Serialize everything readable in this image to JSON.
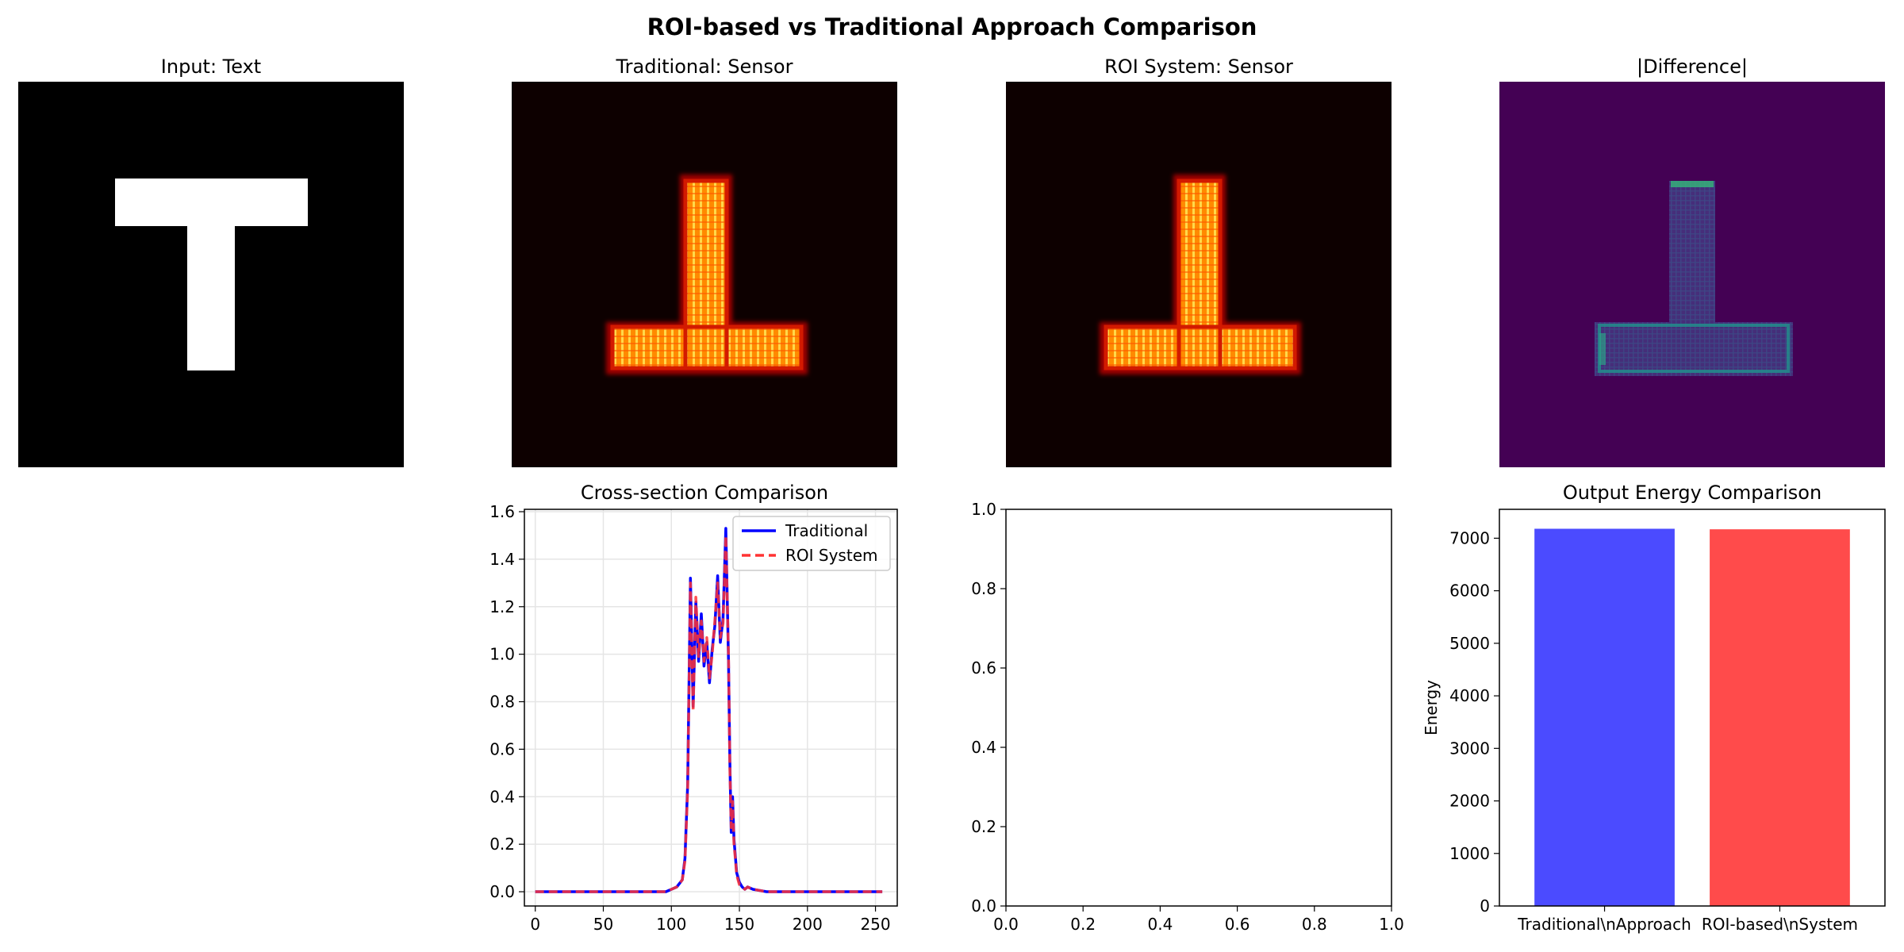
{
  "figure": {
    "title": "ROI-based vs Traditional Approach Comparison"
  },
  "panels": {
    "input": {
      "title": "Input: Text"
    },
    "traditional_sensor": {
      "title": "Traditional: Sensor"
    },
    "roi_sensor": {
      "title": "ROI System: Sensor"
    },
    "difference": {
      "title": "|Difference|"
    }
  },
  "colors": {
    "traditional": "#0000ff",
    "roi": "#ff3333",
    "traditional_bar": "#4b4bff",
    "roi_bar": "#ff4b4b",
    "heat_background": "#0d0000",
    "diff_background": "#440154",
    "grid": "#e5e5e5"
  },
  "chart_data": [
    {
      "type": "line",
      "title": "Cross-section Comparison",
      "xlabel": "",
      "ylabel": "",
      "xlim": [
        -8,
        266
      ],
      "ylim": [
        -0.06,
        1.61
      ],
      "xticks": [
        0,
        50,
        100,
        150,
        200,
        250
      ],
      "yticks": [
        0.0,
        0.2,
        0.4,
        0.6,
        0.8,
        1.0,
        1.2,
        1.4,
        1.6
      ],
      "grid": true,
      "legend_position": "top-right",
      "x": [
        0,
        20,
        40,
        60,
        80,
        96,
        100,
        104,
        108,
        110,
        112,
        114,
        116,
        118,
        120,
        122,
        124,
        126,
        128,
        130,
        132,
        134,
        136,
        138,
        140,
        142,
        143,
        144,
        145,
        146,
        147,
        148,
        150,
        152,
        154,
        156,
        160,
        170,
        180,
        200,
        220,
        240,
        255
      ],
      "series": [
        {
          "name": "Traditional",
          "style": "solid",
          "values": [
            0.0,
            0.0,
            0.0,
            0.0,
            0.0,
            0.0,
            0.01,
            0.02,
            0.05,
            0.14,
            0.45,
            1.32,
            0.78,
            1.22,
            0.97,
            1.17,
            0.95,
            1.05,
            0.88,
            1.02,
            1.12,
            1.33,
            1.05,
            1.15,
            1.53,
            0.97,
            0.55,
            0.25,
            0.4,
            0.22,
            0.15,
            0.08,
            0.04,
            0.02,
            0.01,
            0.02,
            0.01,
            0.0,
            0.0,
            0.0,
            0.0,
            0.0,
            0.0
          ]
        },
        {
          "name": "ROI System",
          "style": "dashed",
          "values": [
            0.0,
            0.0,
            0.0,
            0.0,
            0.0,
            0.0,
            0.01,
            0.02,
            0.05,
            0.13,
            0.43,
            1.3,
            0.76,
            1.24,
            0.99,
            1.14,
            0.97,
            1.07,
            0.9,
            1.0,
            1.14,
            1.3,
            1.07,
            1.13,
            1.5,
            0.99,
            0.52,
            0.27,
            0.38,
            0.2,
            0.14,
            0.07,
            0.03,
            0.02,
            0.01,
            0.02,
            0.01,
            0.0,
            0.0,
            0.0,
            0.0,
            0.0,
            0.0
          ]
        }
      ]
    },
    {
      "type": "line",
      "title": "",
      "xlim": [
        0.0,
        1.0
      ],
      "ylim": [
        0.0,
        1.0
      ],
      "xticks": [
        "0.0",
        "0.2",
        "0.4",
        "0.6",
        "0.8",
        "1.0"
      ],
      "yticks": [
        "0.0",
        "0.2",
        "0.4",
        "0.6",
        "0.8",
        "1.0"
      ],
      "series": []
    },
    {
      "type": "bar",
      "title": "Output Energy Comparison",
      "ylabel": "Energy",
      "categories": [
        "Traditional\\nApproach",
        "ROI-based\\nSystem"
      ],
      "values": [
        7180,
        7170
      ],
      "ylim": [
        0,
        7550
      ],
      "yticks": [
        0,
        1000,
        2000,
        3000,
        4000,
        5000,
        6000,
        7000
      ]
    }
  ]
}
